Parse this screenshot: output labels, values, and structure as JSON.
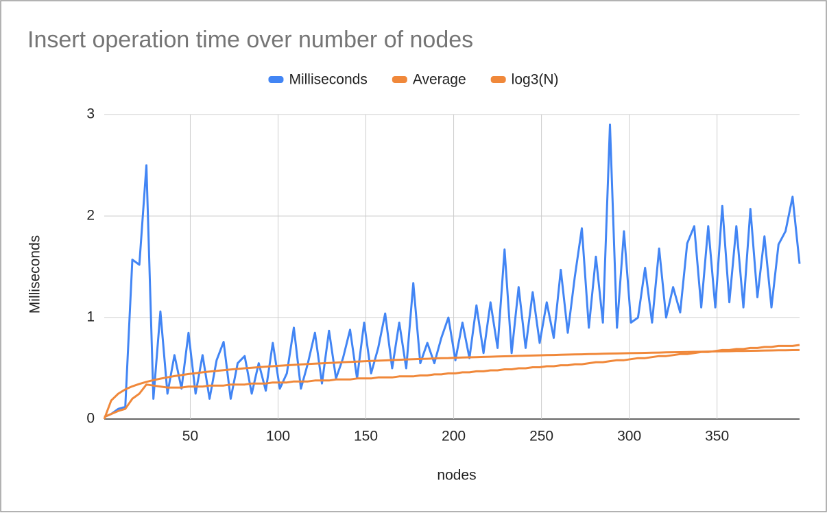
{
  "chart_data": {
    "type": "line",
    "title": "Insert operation time over number of nodes",
    "x_label": "nodes",
    "y_label": "Milliseconds",
    "x": [
      1,
      5,
      9,
      13,
      17,
      21,
      25,
      29,
      33,
      37,
      41,
      45,
      49,
      53,
      57,
      61,
      65,
      69,
      73,
      77,
      81,
      85,
      89,
      93,
      97,
      101,
      105,
      109,
      113,
      117,
      121,
      125,
      129,
      133,
      137,
      141,
      145,
      149,
      153,
      157,
      161,
      165,
      169,
      173,
      177,
      181,
      185,
      189,
      193,
      197,
      201,
      205,
      209,
      213,
      217,
      221,
      225,
      229,
      233,
      237,
      241,
      245,
      249,
      253,
      257,
      261,
      265,
      269,
      273,
      277,
      281,
      285,
      289,
      293,
      297,
      301,
      305,
      309,
      313,
      317,
      321,
      325,
      329,
      333,
      337,
      341,
      345,
      349,
      353,
      357,
      361,
      365,
      369,
      373,
      377,
      381,
      385,
      389,
      393,
      397
    ],
    "series": [
      {
        "name": "Milliseconds",
        "color": "#4285f4",
        "values": [
          0.02,
          0.05,
          0.1,
          0.12,
          1.57,
          1.52,
          2.5,
          0.2,
          1.06,
          0.25,
          0.63,
          0.3,
          0.85,
          0.25,
          0.63,
          0.2,
          0.58,
          0.76,
          0.2,
          0.55,
          0.62,
          0.25,
          0.55,
          0.28,
          0.75,
          0.3,
          0.45,
          0.9,
          0.3,
          0.55,
          0.85,
          0.35,
          0.87,
          0.4,
          0.6,
          0.88,
          0.4,
          0.95,
          0.45,
          0.7,
          1.04,
          0.5,
          0.95,
          0.5,
          1.34,
          0.55,
          0.75,
          0.55,
          0.8,
          1.0,
          0.58,
          0.95,
          0.6,
          1.12,
          0.65,
          1.15,
          0.7,
          1.67,
          0.65,
          1.3,
          0.7,
          1.25,
          0.75,
          1.15,
          0.8,
          1.47,
          0.85,
          1.4,
          1.88,
          0.9,
          1.6,
          0.95,
          2.9,
          0.9,
          1.85,
          0.95,
          1.0,
          1.49,
          0.95,
          1.68,
          1.0,
          1.3,
          1.05,
          1.73,
          1.9,
          1.1,
          1.9,
          1.1,
          2.1,
          1.15,
          1.9,
          1.1,
          2.07,
          1.2,
          1.8,
          1.1,
          1.72,
          1.85,
          2.19,
          1.53
        ]
      },
      {
        "name": "Average",
        "color": "#f0883a",
        "values": [
          0.02,
          0.05,
          0.08,
          0.1,
          0.2,
          0.25,
          0.34,
          0.33,
          0.32,
          0.31,
          0.31,
          0.31,
          0.32,
          0.32,
          0.32,
          0.33,
          0.33,
          0.33,
          0.34,
          0.34,
          0.34,
          0.35,
          0.35,
          0.35,
          0.36,
          0.36,
          0.36,
          0.37,
          0.37,
          0.37,
          0.38,
          0.38,
          0.38,
          0.39,
          0.39,
          0.39,
          0.4,
          0.4,
          0.4,
          0.41,
          0.41,
          0.41,
          0.42,
          0.42,
          0.42,
          0.43,
          0.43,
          0.44,
          0.44,
          0.45,
          0.45,
          0.46,
          0.46,
          0.47,
          0.47,
          0.48,
          0.48,
          0.49,
          0.49,
          0.5,
          0.5,
          0.51,
          0.51,
          0.52,
          0.52,
          0.53,
          0.53,
          0.54,
          0.54,
          0.55,
          0.56,
          0.56,
          0.57,
          0.58,
          0.58,
          0.59,
          0.6,
          0.6,
          0.61,
          0.62,
          0.62,
          0.63,
          0.64,
          0.64,
          0.65,
          0.66,
          0.66,
          0.67,
          0.68,
          0.68,
          0.69,
          0.69,
          0.7,
          0.7,
          0.71,
          0.71,
          0.72,
          0.72,
          0.72,
          0.73
        ]
      },
      {
        "name": "log3(N)",
        "color": "#f0883a",
        "values": [
          0,
          0.183,
          0.25,
          0.292,
          0.322,
          0.346,
          0.366,
          0.383,
          0.398,
          0.411,
          0.423,
          0.433,
          0.443,
          0.452,
          0.46,
          0.468,
          0.475,
          0.482,
          0.488,
          0.494,
          0.5,
          0.505,
          0.511,
          0.516,
          0.52,
          0.525,
          0.53,
          0.534,
          0.538,
          0.542,
          0.546,
          0.549,
          0.553,
          0.556,
          0.56,
          0.563,
          0.566,
          0.569,
          0.572,
          0.575,
          0.578,
          0.581,
          0.584,
          0.587,
          0.589,
          0.592,
          0.594,
          0.597,
          0.599,
          0.601,
          0.604,
          0.606,
          0.608,
          0.61,
          0.612,
          0.614,
          0.616,
          0.618,
          0.62,
          0.622,
          0.624,
          0.626,
          0.628,
          0.63,
          0.631,
          0.633,
          0.635,
          0.637,
          0.638,
          0.64,
          0.641,
          0.643,
          0.645,
          0.646,
          0.648,
          0.649,
          0.651,
          0.652,
          0.654,
          0.655,
          0.657,
          0.658,
          0.659,
          0.661,
          0.662,
          0.663,
          0.665,
          0.666,
          0.667,
          0.668,
          0.67,
          0.671,
          0.672,
          0.673,
          0.675,
          0.676,
          0.677,
          0.678,
          0.679,
          0.68
        ]
      }
    ],
    "xlim": [
      1,
      397
    ],
    "xticks": [
      50,
      100,
      150,
      200,
      250,
      300,
      350
    ],
    "ylim": [
      0,
      3
    ],
    "yticks": [
      0,
      1,
      2,
      3
    ],
    "grid": true,
    "legend": "top"
  }
}
